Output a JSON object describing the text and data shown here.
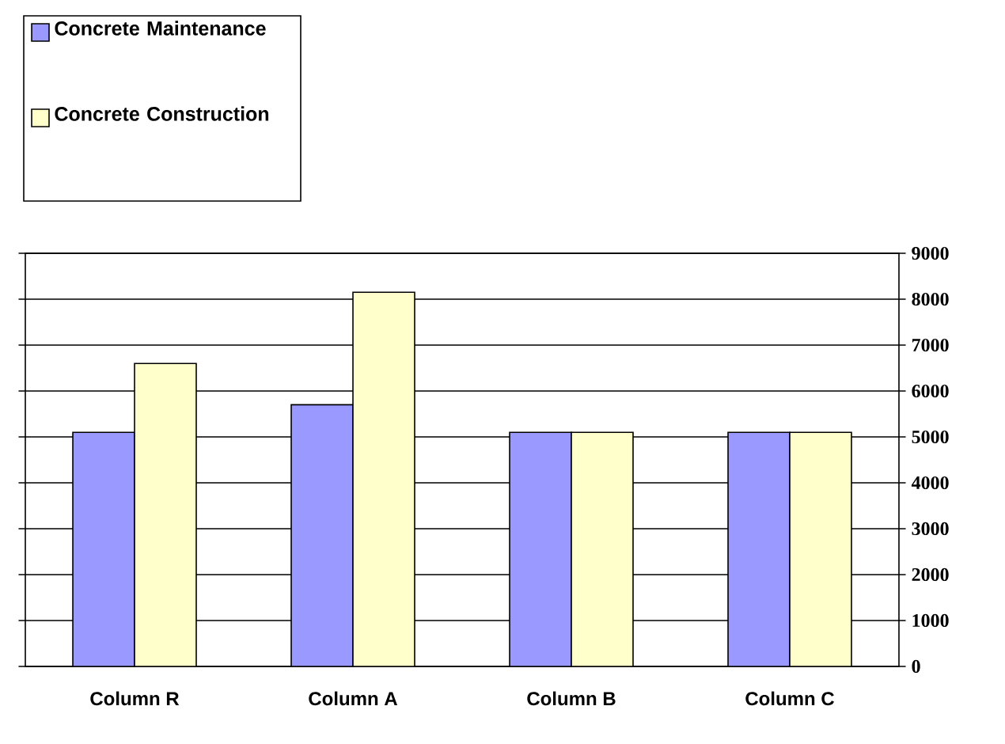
{
  "chart_data": {
    "type": "bar",
    "categories": [
      "Column R",
      "Column A",
      "Column B",
      "Column C"
    ],
    "series": [
      {
        "name": "Concrete Maintenance",
        "color": "#9999ff",
        "values": [
          5100,
          5700,
          5100,
          5100
        ]
      },
      {
        "name": "Concrete Construction",
        "color": "#ffffcc",
        "values": [
          6600,
          8150,
          5100,
          5100
        ]
      }
    ],
    "ylim": [
      0,
      9000
    ],
    "yticks": [
      0,
      1000,
      2000,
      3000,
      4000,
      5000,
      6000,
      7000,
      8000,
      9000
    ],
    "grid": "y",
    "legend": "top left"
  }
}
